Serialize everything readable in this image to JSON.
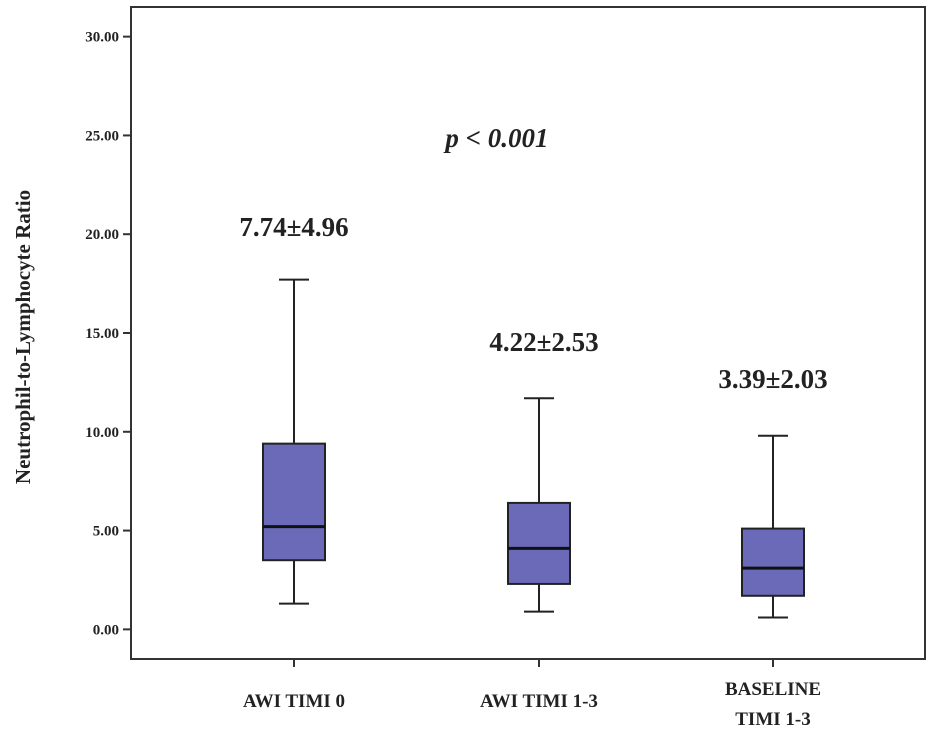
{
  "chart_data": {
    "type": "box",
    "ylabel": "Neutrophil-to-Lymphocyte Ratio",
    "xlabel": "",
    "ylim": [
      -1.5,
      31.5
    ],
    "y_ticks": [
      "0.00",
      "5.00",
      "10.00",
      "15.00",
      "20.00",
      "25.00",
      "30.00"
    ],
    "y_tick_values": [
      0,
      5,
      10,
      15,
      20,
      25,
      30
    ],
    "annotation": "p < 0.001",
    "box_color": "#6a6ab8",
    "categories": [
      {
        "lines": [
          "AWI TIMI 0"
        ],
        "stat": "7.74±4.96",
        "whisker_low": 1.3,
        "q1": 3.5,
        "median": 5.2,
        "q3": 9.4,
        "whisker_high": 17.7
      },
      {
        "lines": [
          "AWI TIMI 1-3"
        ],
        "stat": "4.22±2.53",
        "whisker_low": 0.9,
        "q1": 2.3,
        "median": 4.1,
        "q3": 6.4,
        "whisker_high": 11.7
      },
      {
        "lines": [
          "BASELINE",
          "TIMI 1-3"
        ],
        "stat": "3.39±2.03",
        "whisker_low": 0.6,
        "q1": 1.7,
        "median": 3.1,
        "q3": 5.1,
        "whisker_high": 9.8
      }
    ]
  }
}
